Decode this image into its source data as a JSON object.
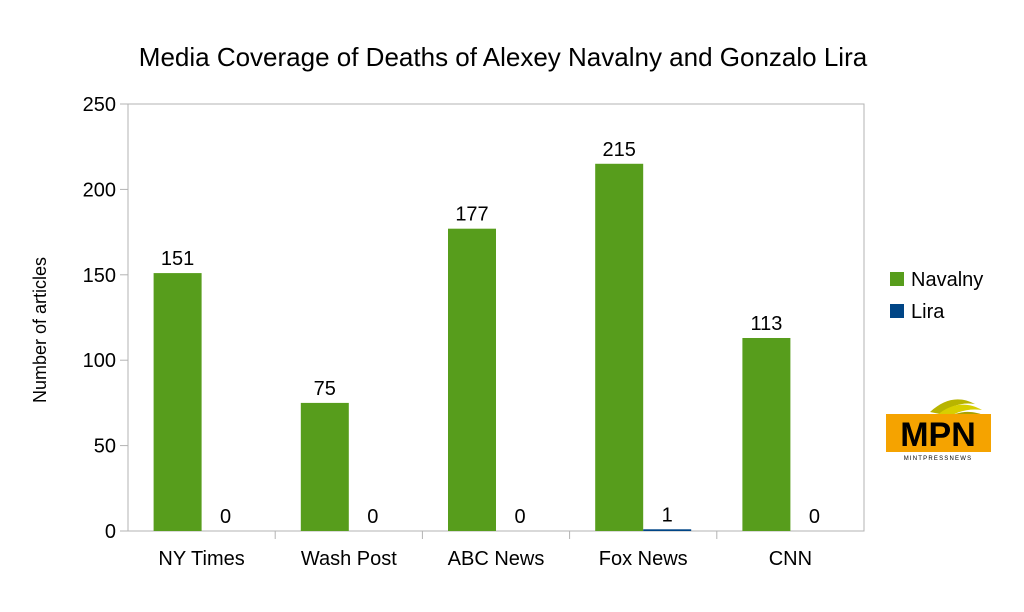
{
  "chart_data": {
    "type": "bar",
    "title": "Media Coverage of Deaths of Alexey Navalny and Gonzalo Lira",
    "xlabel": "",
    "ylabel": "Number of articles",
    "ylim": [
      0,
      250
    ],
    "yticks": [
      0,
      50,
      100,
      150,
      200,
      250
    ],
    "categories": [
      "NY Times",
      "Wash Post",
      "ABC News",
      "Fox News",
      "CNN"
    ],
    "series": [
      {
        "name": "Navalny",
        "color": "#579d1c",
        "values": [
          151,
          75,
          177,
          215,
          113
        ]
      },
      {
        "name": "Lira",
        "color": "#004586",
        "values": [
          0,
          0,
          0,
          1,
          0
        ]
      }
    ],
    "legend_position": "right",
    "grid": false
  },
  "logo": {
    "text": "MPN",
    "subtext": "MINTPRESSNEWS"
  }
}
